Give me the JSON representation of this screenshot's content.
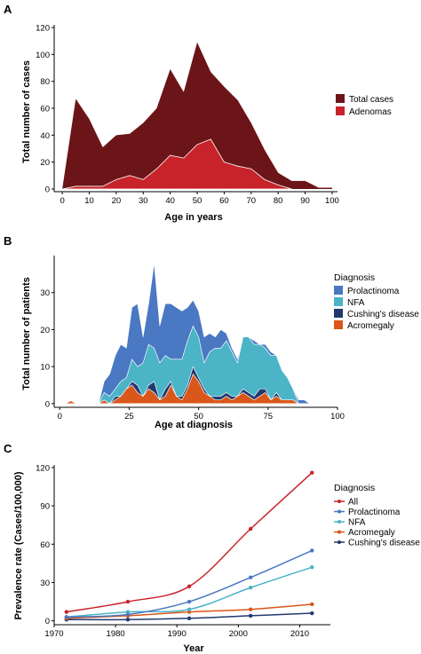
{
  "chart_data": [
    {
      "panel_letter": "A",
      "type": "area",
      "xlabel": "Age in years",
      "ylabel": "Total number of cases",
      "xlim": [
        -3,
        102
      ],
      "ylim": [
        -2,
        122
      ],
      "x_ticks": [
        0,
        10,
        20,
        30,
        40,
        50,
        60,
        70,
        80,
        90,
        100
      ],
      "y_ticks": [
        0,
        20,
        40,
        60,
        80,
        100,
        120
      ],
      "grid": false,
      "legend_placement": "right",
      "series": [
        {
          "name": "Total cases",
          "color": "#6b1518",
          "x": [
            0,
            5,
            10,
            15,
            20,
            25,
            30,
            35,
            40,
            45,
            50,
            55,
            60,
            65,
            70,
            75,
            80,
            85,
            90,
            95,
            100
          ],
          "values": [
            0,
            67,
            52,
            31,
            40,
            41,
            49,
            60,
            89,
            72,
            109,
            87,
            76,
            66,
            49,
            29,
            12,
            6,
            6,
            1,
            1
          ]
        },
        {
          "name": "Adenomas",
          "color": "#c8232a",
          "x": [
            0,
            5,
            10,
            15,
            20,
            25,
            30,
            35,
            40,
            45,
            50,
            55,
            60,
            65,
            70,
            75,
            80,
            85
          ],
          "values": [
            0,
            2,
            2,
            2,
            7,
            10,
            7,
            15,
            25,
            23,
            33,
            37,
            20,
            17,
            15,
            7,
            3,
            0
          ]
        }
      ]
    },
    {
      "panel_letter": "B",
      "type": "area",
      "xlabel": "Age at diagnosis",
      "ylabel": "Total number of patients",
      "legend_title": "Diagnosis",
      "xlim": [
        -2,
        100
      ],
      "ylim": [
        -1,
        40
      ],
      "x_ticks": [
        0,
        25,
        50,
        75,
        100
      ],
      "y_ticks": [
        0,
        10,
        20,
        30
      ],
      "grid": false,
      "legend_placement": "right",
      "stacked": true,
      "x": [
        0,
        2,
        4,
        6,
        8,
        10,
        12,
        14,
        16,
        18,
        20,
        22,
        24,
        26,
        28,
        30,
        32,
        34,
        36,
        38,
        40,
        42,
        44,
        46,
        48,
        50,
        52,
        54,
        56,
        58,
        60,
        62,
        64,
        66,
        68,
        70,
        72,
        74,
        76,
        78,
        80,
        82,
        84,
        86,
        88,
        90,
        92
      ],
      "series": [
        {
          "name": "Acromegaly",
          "color": "#d9571a",
          "values": [
            0,
            0,
            0.8,
            0,
            0,
            0,
            0,
            0,
            1,
            0,
            1,
            2,
            4,
            5,
            3,
            2,
            4,
            3,
            1,
            2,
            5,
            2,
            1,
            4,
            8,
            6,
            3,
            2,
            1,
            1,
            2,
            1,
            2,
            3,
            2,
            1,
            2,
            3,
            1,
            2,
            1,
            1,
            1,
            0,
            0,
            0,
            0
          ]
        },
        {
          "name": "Cushing's disease",
          "color": "#22396f",
          "values": [
            0,
            0,
            0,
            0,
            0,
            0,
            0,
            0,
            0,
            0,
            1,
            0,
            0,
            1,
            2,
            0,
            1,
            3,
            0,
            2,
            1,
            0,
            1,
            1,
            2,
            1,
            1,
            0,
            1,
            1,
            1,
            1,
            0,
            1,
            1,
            1,
            2,
            1,
            0,
            1,
            0,
            0,
            0,
            0,
            0,
            0,
            0
          ]
        },
        {
          "name": "NFA",
          "color": "#4bb4c7",
          "values": [
            0,
            0,
            0,
            0,
            0,
            0,
            0,
            0,
            2,
            2,
            2,
            4,
            3,
            6,
            5,
            9,
            11,
            9,
            10,
            9,
            6,
            10,
            10,
            12,
            11,
            11,
            7,
            12,
            13,
            13,
            14,
            12,
            9,
            14,
            15,
            14,
            12,
            11,
            12,
            10,
            8,
            6,
            3,
            0,
            0,
            0,
            0
          ]
        },
        {
          "name": "Prolactinoma",
          "color": "#4a78c2",
          "values": [
            0,
            0,
            0,
            0,
            0,
            0,
            0,
            0,
            3,
            6,
            9,
            10,
            8,
            14,
            17,
            7,
            11,
            23,
            10,
            14,
            15,
            14,
            13,
            9,
            7,
            7,
            7,
            5,
            3,
            5,
            2,
            1,
            1,
            0,
            0,
            1,
            0,
            1,
            1,
            0,
            0,
            0,
            0,
            1,
            1,
            0,
            0
          ]
        }
      ]
    },
    {
      "panel_letter": "C",
      "type": "line",
      "xlabel": "Year",
      "ylabel": "Prevalence rate (Cases/100,000)",
      "legend_title": "Diagnosis",
      "xlim": [
        1970,
        2015
      ],
      "ylim": [
        -3,
        122
      ],
      "x_ticks": [
        1970,
        1980,
        1990,
        2000,
        2010
      ],
      "y_ticks": [
        0,
        30,
        60,
        90,
        120
      ],
      "grid": false,
      "legend_placement": "right",
      "x": [
        1972,
        1982,
        1992,
        2002,
        2012
      ],
      "series": [
        {
          "name": "All",
          "color": "#c8232a",
          "values": [
            7,
            15,
            27,
            72,
            116
          ]
        },
        {
          "name": "Prolactinoma",
          "color": "#4a78c2",
          "values": [
            3,
            5,
            15,
            34,
            55
          ]
        },
        {
          "name": "NFA",
          "color": "#4bb4c7",
          "values": [
            3,
            7,
            9,
            26,
            42
          ]
        },
        {
          "name": "Acromegaly",
          "color": "#d9571a",
          "values": [
            2,
            4,
            7,
            9,
            13
          ]
        },
        {
          "name": "Cushing's disease",
          "color": "#22396f",
          "values": [
            1,
            1,
            2,
            4,
            6
          ]
        }
      ]
    }
  ]
}
